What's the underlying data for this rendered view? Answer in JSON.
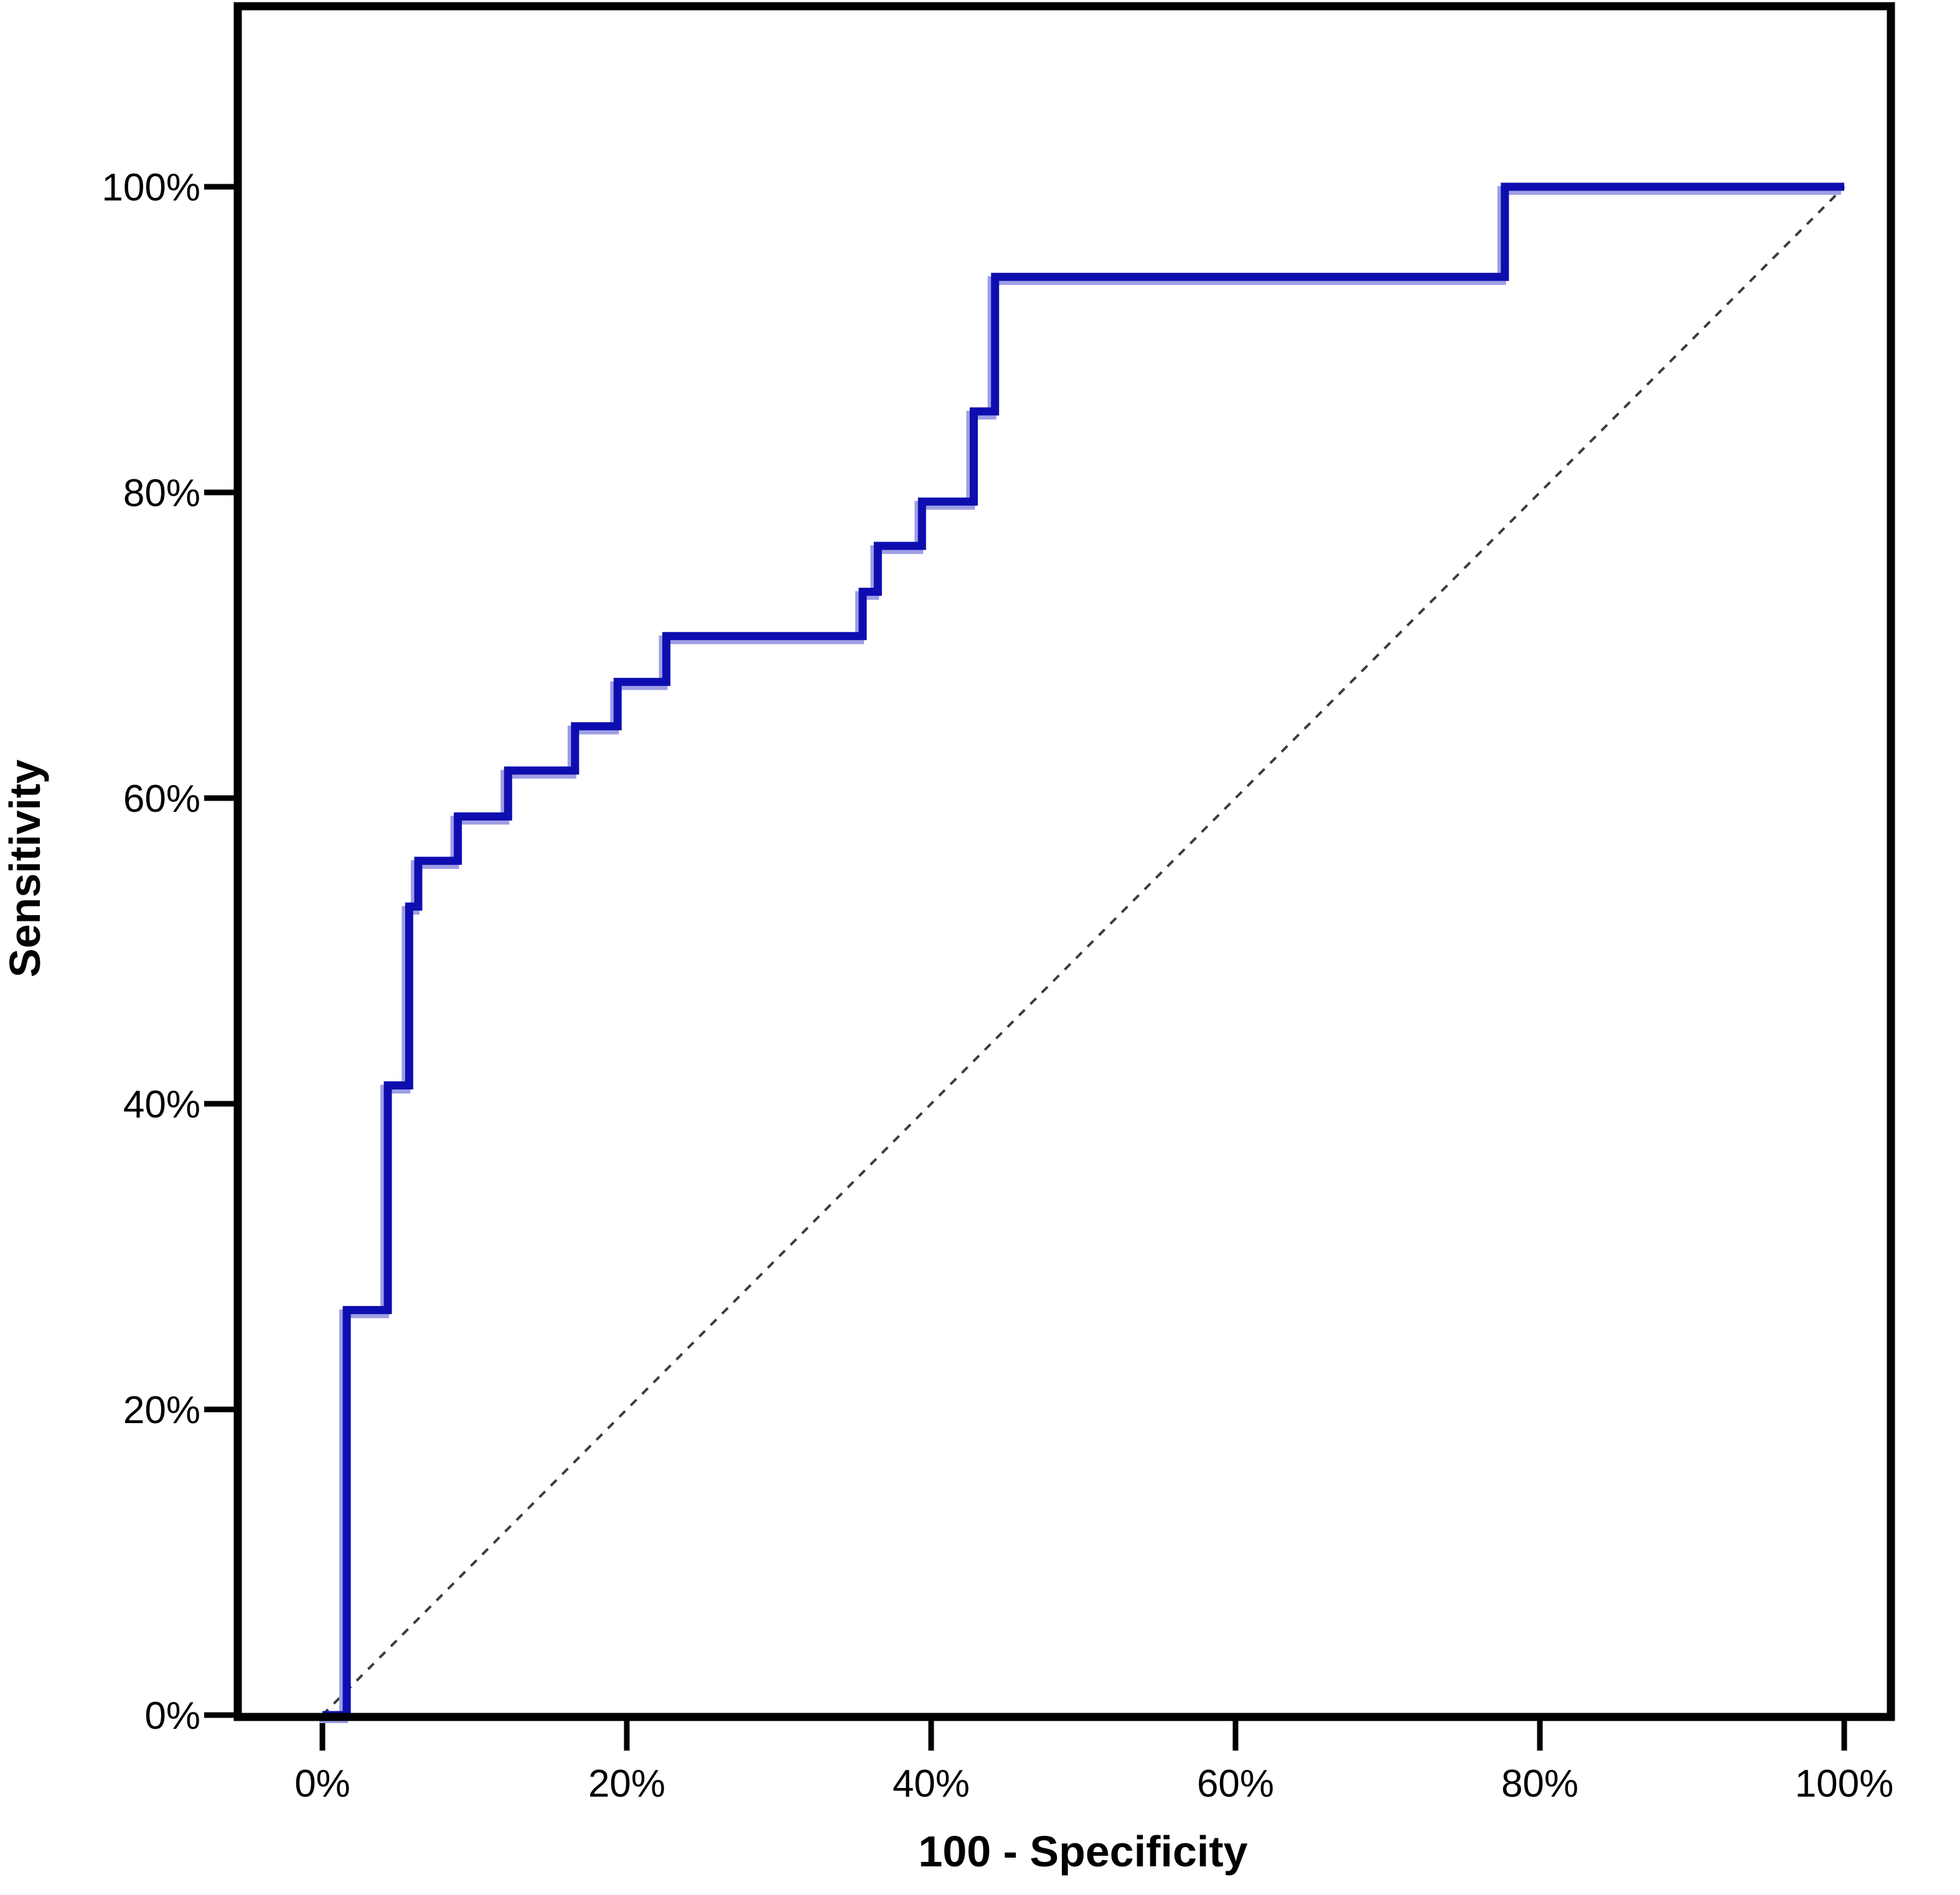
{
  "figure": {
    "background_color": "#ffffff",
    "axis_color": "#000000",
    "accent_color": "#0e0eb0"
  },
  "chart_data": {
    "type": "line",
    "subtype": "roc_curve",
    "title": "",
    "xlabel": "100 - Specificity",
    "ylabel": "Sensitivity",
    "xlim": [
      0,
      100
    ],
    "ylim": [
      0,
      100
    ],
    "grid": false,
    "legend": false,
    "x_tick_values": [
      0,
      20,
      40,
      60,
      80,
      100
    ],
    "x_tick_labels": [
      "0%",
      "20%",
      "40%",
      "60%",
      "80%",
      "100%"
    ],
    "y_tick_values": [
      0,
      20,
      40,
      60,
      80,
      100
    ],
    "y_tick_labels": [
      "0%",
      "20%",
      "40%",
      "60%",
      "80%",
      "100%"
    ],
    "series": [
      {
        "name": "ROC curve",
        "style": "solid",
        "color": "#0e0eb0",
        "halo_color": "#9e9ee4",
        "stroke_width": 13,
        "points": [
          [
            0,
            0
          ],
          [
            1.6,
            0
          ],
          [
            1.6,
            26.5
          ],
          [
            4.3,
            26.5
          ],
          [
            4.3,
            41.2
          ],
          [
            5.7,
            41.2
          ],
          [
            5.7,
            52.9
          ],
          [
            6.3,
            52.9
          ],
          [
            6.3,
            55.9
          ],
          [
            8.9,
            55.9
          ],
          [
            8.9,
            58.8
          ],
          [
            12.2,
            58.8
          ],
          [
            12.2,
            61.8
          ],
          [
            16.6,
            61.8
          ],
          [
            16.6,
            64.7
          ],
          [
            19.4,
            64.7
          ],
          [
            19.4,
            67.6
          ],
          [
            22.6,
            67.6
          ],
          [
            22.6,
            70.6
          ],
          [
            35.5,
            70.6
          ],
          [
            35.5,
            73.5
          ],
          [
            36.5,
            73.5
          ],
          [
            36.5,
            76.5
          ],
          [
            39.4,
            76.5
          ],
          [
            39.4,
            79.4
          ],
          [
            42.8,
            79.4
          ],
          [
            42.8,
            85.3
          ],
          [
            44.2,
            85.3
          ],
          [
            44.2,
            94.1
          ],
          [
            77.7,
            94.1
          ],
          [
            77.7,
            100
          ],
          [
            100,
            100
          ]
        ]
      },
      {
        "name": "Reference diagonal",
        "style": "dashed",
        "color": "#3c3c3c",
        "stroke_width": 4,
        "points": [
          [
            0,
            0
          ],
          [
            100,
            100
          ]
        ]
      }
    ]
  }
}
